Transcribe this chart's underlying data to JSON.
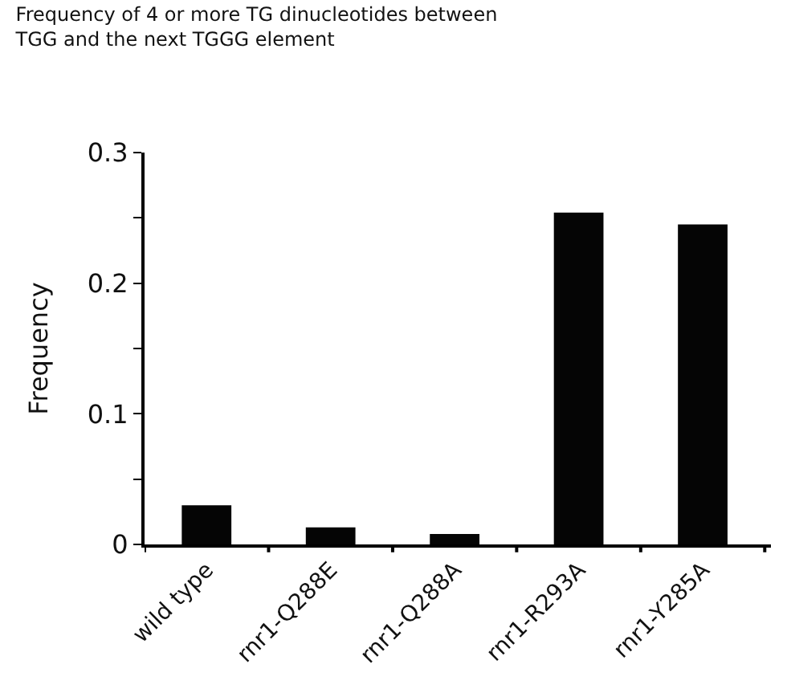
{
  "chart_data": {
    "type": "bar",
    "title": "Frequency of 4 or more TG dinucleotides between\nTGG and the next TGGG element",
    "ylabel": "Frequency",
    "categories": [
      "wild type",
      "rnr1-Q288E",
      "rnr1-Q288A",
      "rnr1-R293A",
      "rnr1-Y285A"
    ],
    "values": [
      0.03,
      0.013,
      0.008,
      0.254,
      0.245
    ],
    "color": "#050505",
    "ylim": [
      0,
      0.3
    ],
    "yticks": [
      0,
      {
        "value": 0.05,
        "label": null
      },
      0.1,
      {
        "value": 0.15,
        "label": null
      },
      0.2,
      {
        "value": 0.25,
        "label": null
      },
      0.3
    ],
    "legend": false
  }
}
